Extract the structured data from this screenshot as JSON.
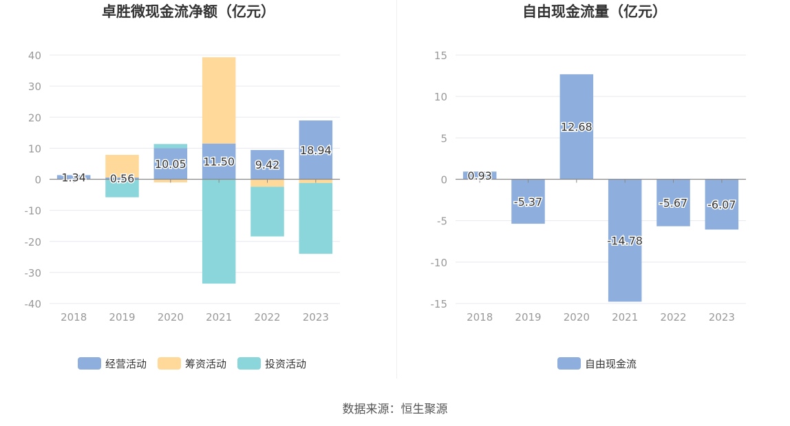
{
  "source_text": "数据来源：恒生聚源",
  "colors": {
    "operating": "#8eaedd",
    "financing": "#ffd99a",
    "investing": "#8ad6db",
    "free_cf": "#8eaedd",
    "axis": "#999999",
    "grid": "#e6e8ef",
    "title": "#333333"
  },
  "chart_data": [
    {
      "type": "bar",
      "stacked": true,
      "title": "卓胜微现金流净额（亿元）",
      "categories": [
        "2018",
        "2019",
        "2020",
        "2021",
        "2022",
        "2023"
      ],
      "ylim": [
        -40,
        40
      ],
      "yticks": [
        40,
        30,
        20,
        10,
        0,
        -10,
        -20,
        -30,
        -40
      ],
      "grid": true,
      "legend_position": "bottom-center",
      "series": [
        {
          "name": "经营活动",
          "key": "operating",
          "values": [
            1.34,
            0.56,
            10.05,
            11.5,
            9.42,
            18.94
          ]
        },
        {
          "name": "筹资活动",
          "key": "financing",
          "values": [
            0,
            7.3,
            -1.0,
            27.8,
            -2.4,
            -1.2
          ]
        },
        {
          "name": "投资活动",
          "key": "investing",
          "values": [
            0,
            -5.8,
            1.3,
            -33.6,
            -16.0,
            -22.8
          ]
        }
      ],
      "data_labels": [
        "1.34",
        "0.56",
        "10.05",
        "11.50",
        "9.42",
        "18.94"
      ]
    },
    {
      "type": "bar",
      "title": "自由现金流量（亿元）",
      "categories": [
        "2018",
        "2019",
        "2020",
        "2021",
        "2022",
        "2023"
      ],
      "ylim": [
        -15,
        15
      ],
      "yticks": [
        15,
        10,
        5,
        0,
        -5,
        -10,
        -15
      ],
      "grid": true,
      "legend_position": "bottom-center",
      "series": [
        {
          "name": "自由现金流",
          "key": "free_cf",
          "values": [
            0.93,
            -5.37,
            12.68,
            -14.78,
            -5.67,
            -6.07
          ]
        }
      ],
      "data_labels": [
        "0.93",
        "-5.37",
        "12.68",
        "-14.78",
        "-5.67",
        "-6.07"
      ]
    }
  ]
}
